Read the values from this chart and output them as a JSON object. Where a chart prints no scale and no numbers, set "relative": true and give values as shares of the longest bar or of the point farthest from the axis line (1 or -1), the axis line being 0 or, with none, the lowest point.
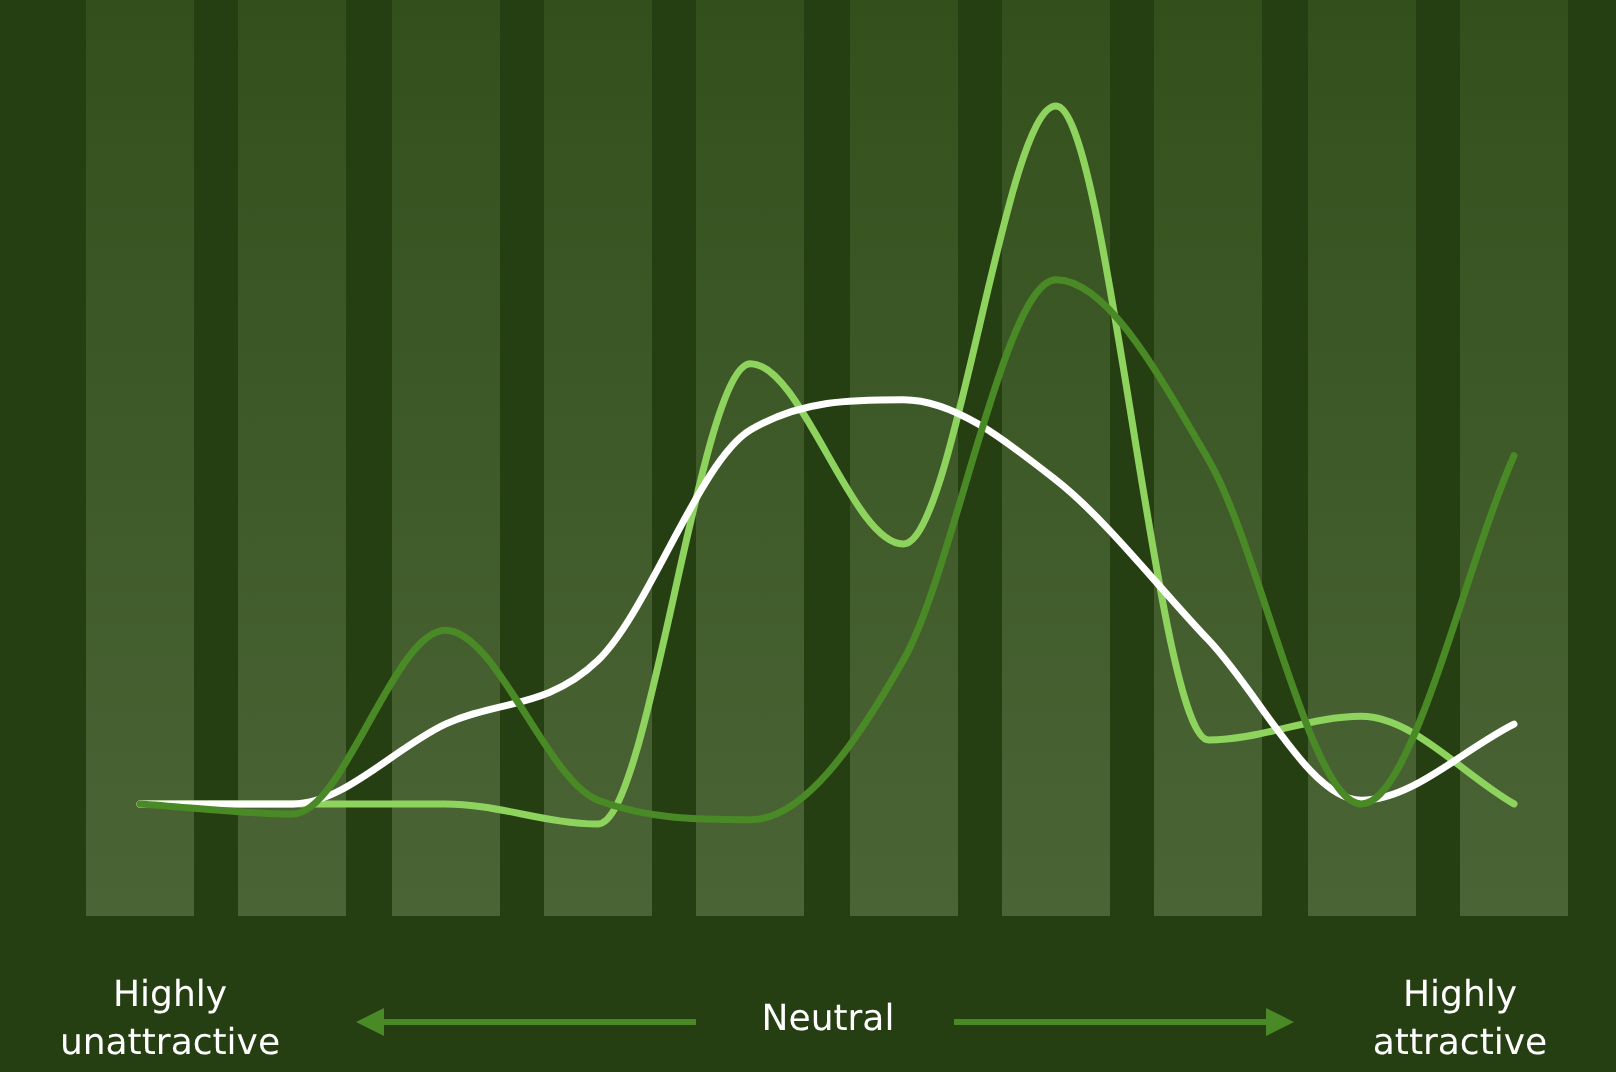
{
  "chart_data": {
    "type": "line",
    "relative": true,
    "marker": "none",
    "legend": false,
    "grid": false,
    "categories": [
      null,
      null,
      null,
      null,
      null,
      null,
      null,
      null,
      null,
      null
    ],
    "series": [
      {
        "color": "#4a8a26",
        "values": [
          0.028,
          0.014,
          0.27,
          0.033,
          0.006,
          0.228,
          0.758,
          0.507,
          0.028,
          0.513
        ]
      },
      {
        "color": "#ffffff",
        "values": [
          0.028,
          0.028,
          0.139,
          0.228,
          0.549,
          0.591,
          0.479,
          0.256,
          0.033,
          0.139
        ]
      },
      {
        "color": "#8fd35f",
        "values": [
          0.028,
          0.028,
          0.028,
          0,
          0.641,
          0.39,
          1,
          0.117,
          0.15,
          0.028
        ]
      }
    ],
    "annotations": [
      "Highly unattractive",
      "Neutral",
      "Highly attractive"
    ]
  }
}
